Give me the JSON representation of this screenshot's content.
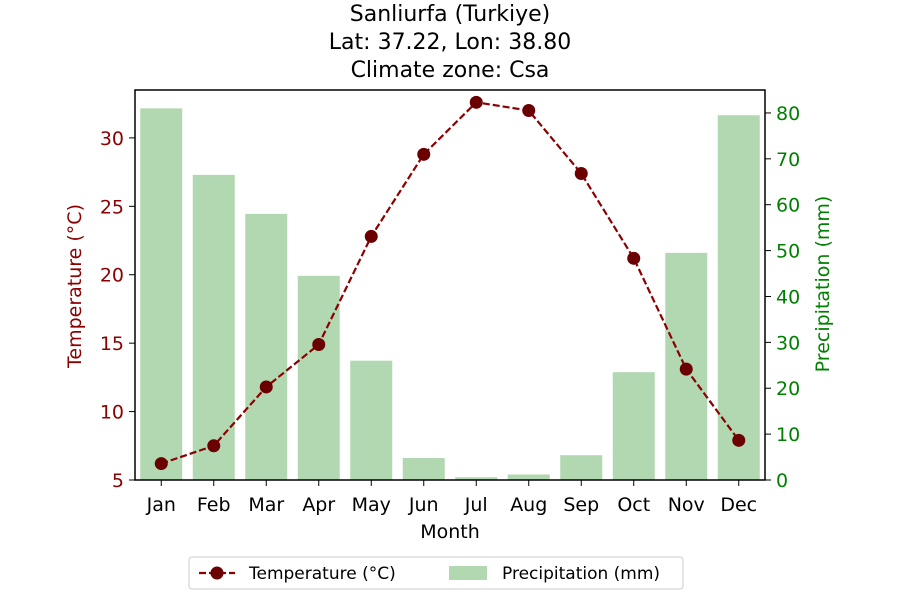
{
  "chart_data": {
    "type": "bar+line",
    "title_lines": [
      "Sanliurfa (Turkiye)",
      "Lat: 37.22, Lon: 38.80",
      "Climate zone: Csa"
    ],
    "xlabel": "Month",
    "categories": [
      "Jan",
      "Feb",
      "Mar",
      "Apr",
      "May",
      "Jun",
      "Jul",
      "Aug",
      "Sep",
      "Oct",
      "Nov",
      "Dec"
    ],
    "temperature": {
      "name": "Temperature (°C)",
      "axis_label": "Temperature (°C)",
      "color": "#8b0000",
      "marker_color": "#6b0000",
      "values": [
        6.2,
        7.5,
        11.8,
        14.9,
        22.8,
        28.8,
        32.6,
        32.0,
        27.4,
        21.2,
        13.1,
        7.9
      ],
      "ylim": [
        5,
        33.5
      ],
      "ticks": [
        5,
        10,
        15,
        20,
        25,
        30
      ]
    },
    "precipitation": {
      "name": "Precipitation (mm)",
      "axis_label": "Precipitation (mm)",
      "color": "#008000",
      "bar_color": "#b2d8b2",
      "values": [
        81,
        66.5,
        58,
        44.5,
        26,
        4.8,
        0.6,
        1.2,
        5.4,
        23.5,
        49.5,
        79.5
      ],
      "ylim": [
        0,
        85
      ],
      "ticks": [
        0,
        10,
        20,
        30,
        40,
        50,
        60,
        70,
        80
      ]
    },
    "legend_position": "bottom-center"
  }
}
